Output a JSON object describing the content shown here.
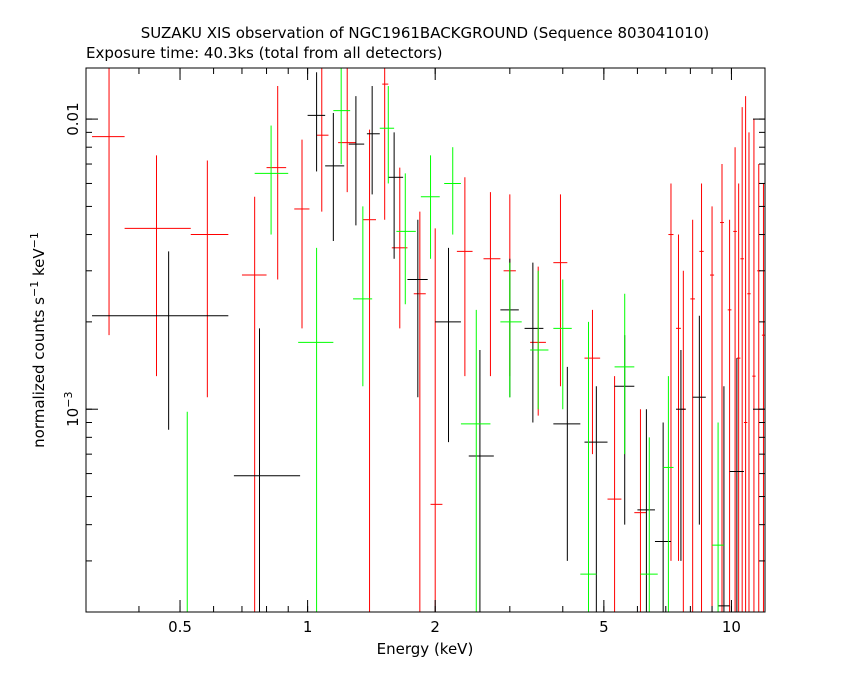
{
  "chart_data": {
    "type": "scatter",
    "title": "SUZAKU XIS observation of NGC1961BACKGROUND (Sequence 803041010)",
    "subtitle": "Exposure time: 40.3ks (total from all detectors)",
    "xlabel": "Energy (keV)",
    "ylabel": "normalized counts s^-1 keV^-1",
    "x_scale": "log",
    "y_scale": "log",
    "xlim": [
      0.3,
      12
    ],
    "ylim": [
      0.0002,
      0.015
    ],
    "x_ticks": [
      0.5,
      1,
      2,
      5,
      10
    ],
    "x_tick_labels": [
      "0.5",
      "1",
      "2",
      "5",
      "10"
    ],
    "y_ticks": [
      0.001,
      0.01
    ],
    "y_tick_labels": [
      "10^-3",
      "0.01"
    ],
    "grid": false,
    "series": [
      {
        "color": "#ff0000",
        "points": [
          {
            "x": 0.34,
            "xerr": [
              0.31,
              0.37
            ],
            "y": 0.0087,
            "yerr": [
              0.0018,
              0.016
            ]
          },
          {
            "x": 0.44,
            "xerr": [
              0.37,
              0.53
            ],
            "y": 0.0042,
            "yerr": [
              0.0013,
              0.0075
            ]
          },
          {
            "x": 0.58,
            "xerr": [
              0.53,
              0.65
            ],
            "y": 0.004,
            "yerr": [
              0.0011,
              0.0072
            ]
          },
          {
            "x": 0.75,
            "xerr": [
              0.7,
              0.8
            ],
            "y": 0.0029,
            "yerr": [
              0.0002,
              0.0054
            ]
          },
          {
            "x": 0.85,
            "xerr": [
              0.8,
              0.89
            ],
            "y": 0.0068,
            "yerr": [
              0.0028,
              0.013
            ]
          },
          {
            "x": 0.97,
            "xerr": [
              0.93,
              1.01
            ],
            "y": 0.0049,
            "yerr": [
              0.0019,
              0.0085
            ]
          },
          {
            "x": 1.08,
            "xerr": [
              1.05,
              1.12
            ],
            "y": 0.0088,
            "yerr": [
              0.0048,
              0.015
            ]
          },
          {
            "x": 1.24,
            "xerr": [
              1.18,
              1.3
            ],
            "y": 0.0083,
            "yerr": [
              0.0056,
              0.015
            ]
          },
          {
            "x": 1.4,
            "xerr": [
              1.35,
              1.45
            ],
            "y": 0.0045,
            "yerr": [
              0.0002,
              0.0092
            ]
          },
          {
            "x": 1.52,
            "xerr": [
              1.5,
              1.55
            ],
            "y": 0.0132,
            "yerr": [
              0.0045,
              0.015
            ]
          },
          {
            "x": 1.65,
            "xerr": [
              1.58,
              1.72
            ],
            "y": 0.0036,
            "yerr": [
              0.0019,
              0.0068
            ]
          },
          {
            "x": 1.84,
            "xerr": [
              1.78,
              1.9
            ],
            "y": 0.0025,
            "yerr": [
              0.0002,
              0.0048
            ]
          },
          {
            "x": 2.0,
            "xerr": [
              1.95,
              2.08
            ],
            "y": 0.00047,
            "yerr": [
              0.0002,
              0.0042
            ]
          },
          {
            "x": 2.35,
            "xerr": [
              2.25,
              2.45
            ],
            "y": 0.0035,
            "yerr": [
              0.0013,
              0.0063
            ]
          },
          {
            "x": 2.7,
            "xerr": [
              2.6,
              2.85
            ],
            "y": 0.0033,
            "yerr": [
              0.0013,
              0.0056
            ]
          },
          {
            "x": 3.0,
            "xerr": [
              2.9,
              3.1
            ],
            "y": 0.003,
            "yerr": [
              0.0013,
              0.0055
            ]
          },
          {
            "x": 3.5,
            "xerr": [
              3.35,
              3.65
            ],
            "y": 0.0017,
            "yerr": [
              0.00095,
              0.0031
            ]
          },
          {
            "x": 3.95,
            "xerr": [
              3.8,
              4.1
            ],
            "y": 0.0032,
            "yerr": [
              0.0012,
              0.0055
            ]
          },
          {
            "x": 4.7,
            "xerr": [
              4.5,
              4.9
            ],
            "y": 0.0015,
            "yerr": [
              0.0007,
              0.0022
            ]
          },
          {
            "x": 5.3,
            "xerr": [
              5.1,
              5.5
            ],
            "y": 0.00049,
            "yerr": [
              0.0002,
              0.0013
            ]
          },
          {
            "x": 6.1,
            "xerr": [
              5.9,
              6.3
            ],
            "y": 0.00044,
            "yerr": [
              0.0002,
              0.001
            ]
          },
          {
            "x": 7.2,
            "xerr": [
              7.1,
              7.3
            ],
            "y": 0.004,
            "yerr": [
              0.0003,
              0.006
            ]
          },
          {
            "x": 7.5,
            "xerr": [
              7.4,
              7.6
            ],
            "y": 0.0019,
            "yerr": [
              0.0003,
              0.004
            ]
          },
          {
            "x": 7.7,
            "xerr": [
              7.6,
              7.8
            ],
            "y": 0.001,
            "yerr": [
              0.0002,
              0.003
            ]
          },
          {
            "x": 8.1,
            "xerr": [
              8.0,
              8.2
            ],
            "y": 0.0024,
            "yerr": [
              0.0002,
              0.0045
            ]
          },
          {
            "x": 8.5,
            "xerr": [
              8.4,
              8.6
            ],
            "y": 0.0035,
            "yerr": [
              0.0002,
              0.006
            ]
          },
          {
            "x": 9.0,
            "xerr": [
              8.9,
              9.1
            ],
            "y": 0.0029,
            "yerr": [
              0.0002,
              0.005
            ]
          },
          {
            "x": 9.5,
            "xerr": [
              9.4,
              9.6
            ],
            "y": 0.0044,
            "yerr": [
              0.0002,
              0.007
            ]
          },
          {
            "x": 9.9,
            "xerr": [
              9.8,
              10.0
            ],
            "y": 0.0022,
            "yerr": [
              0.0002,
              0.0045
            ]
          },
          {
            "x": 10.2,
            "xerr": [
              10.1,
              10.3
            ],
            "y": 0.0041,
            "yerr": [
              0.0002,
              0.008
            ]
          },
          {
            "x": 10.4,
            "xerr": [
              10.3,
              10.5
            ],
            "y": 0.0015,
            "yerr": [
              0.0002,
              0.006
            ]
          },
          {
            "x": 10.6,
            "xerr": [
              10.5,
              10.7
            ],
            "y": 0.0033,
            "yerr": [
              0.0002,
              0.011
            ]
          },
          {
            "x": 10.8,
            "xerr": [
              10.7,
              10.9
            ],
            "y": 0.0009,
            "yerr": [
              0.0002,
              0.012
            ]
          },
          {
            "x": 11.0,
            "xerr": [
              10.9,
              11.1
            ],
            "y": 0.0025,
            "yerr": [
              0.0002,
              0.009
            ]
          },
          {
            "x": 11.3,
            "xerr": [
              11.2,
              11.4
            ],
            "y": 0.0013,
            "yerr": [
              0.0002,
              0.01
            ]
          },
          {
            "x": 11.6,
            "xerr": [
              11.5,
              11.7
            ],
            "y": 0.003,
            "yerr": [
              0.0002,
              0.007
            ]
          },
          {
            "x": 11.9,
            "xerr": [
              11.8,
              12.0
            ],
            "y": 0.0018,
            "yerr": [
              0.0002,
              0.006
            ]
          }
        ]
      },
      {
        "color": "#000000",
        "points": [
          {
            "x": 0.47,
            "xerr": [
              0.31,
              0.65
            ],
            "y": 0.0021,
            "yerr": [
              0.00085,
              0.0035
            ]
          },
          {
            "x": 0.77,
            "xerr": [
              0.67,
              0.96
            ],
            "y": 0.00059,
            "yerr": [
              0.0002,
              0.0019
            ]
          },
          {
            "x": 1.05,
            "xerr": [
              1.0,
              1.1
            ],
            "y": 0.0103,
            "yerr": [
              0.0066,
              0.0145
            ]
          },
          {
            "x": 1.15,
            "xerr": [
              1.1,
              1.22
            ],
            "y": 0.0069,
            "yerr": [
              0.0038,
              0.0105
            ]
          },
          {
            "x": 1.3,
            "xerr": [
              1.25,
              1.36
            ],
            "y": 0.0082,
            "yerr": [
              0.0043,
              0.012
            ]
          },
          {
            "x": 1.42,
            "xerr": [
              1.38,
              1.48
            ],
            "y": 0.0089,
            "yerr": [
              0.0055,
              0.013
            ]
          },
          {
            "x": 1.6,
            "xerr": [
              1.55,
              1.68
            ],
            "y": 0.0063,
            "yerr": [
              0.0033,
              0.009
            ]
          },
          {
            "x": 1.82,
            "xerr": [
              1.72,
              1.92
            ],
            "y": 0.0028,
            "yerr": [
              0.0011,
              0.0045
            ]
          },
          {
            "x": 2.15,
            "xerr": [
              2.0,
              2.3
            ],
            "y": 0.002,
            "yerr": [
              0.00077,
              0.0036
            ]
          },
          {
            "x": 2.55,
            "xerr": [
              2.4,
              2.75
            ],
            "y": 0.00069,
            "yerr": [
              0.0002,
              0.0016
            ]
          },
          {
            "x": 3.0,
            "xerr": [
              2.85,
              3.15
            ],
            "y": 0.0022,
            "yerr": [
              0.0011,
              0.0033
            ]
          },
          {
            "x": 3.4,
            "xerr": [
              3.25,
              3.6
            ],
            "y": 0.0019,
            "yerr": [
              0.0009,
              0.0032
            ]
          },
          {
            "x": 4.1,
            "xerr": [
              3.8,
              4.4
            ],
            "y": 0.00089,
            "yerr": [
              0.0003,
              0.0014
            ]
          },
          {
            "x": 4.8,
            "xerr": [
              4.5,
              5.1
            ],
            "y": 0.00077,
            "yerr": [
              0.0002,
              0.0012
            ]
          },
          {
            "x": 5.6,
            "xerr": [
              5.3,
              5.9
            ],
            "y": 0.0012,
            "yerr": [
              0.0004,
              0.0018
            ]
          },
          {
            "x": 6.3,
            "xerr": [
              6.0,
              6.6
            ],
            "y": 0.00045,
            "yerr": [
              0.0002,
              0.001
            ]
          },
          {
            "x": 6.9,
            "xerr": [
              6.6,
              7.2
            ],
            "y": 0.00035,
            "yerr": [
              0.0002,
              0.0009
            ]
          },
          {
            "x": 7.6,
            "xerr": [
              7.4,
              7.8
            ],
            "y": 0.001,
            "yerr": [
              0.0003,
              0.0016
            ]
          },
          {
            "x": 8.4,
            "xerr": [
              8.1,
              8.7
            ],
            "y": 0.0011,
            "yerr": [
              0.0004,
              0.0021
            ]
          },
          {
            "x": 9.6,
            "xerr": [
              9.3,
              9.9
            ],
            "y": 0.00021,
            "yerr": [
              0.0002,
              0.0012
            ]
          },
          {
            "x": 10.3,
            "xerr": [
              9.9,
              10.7
            ],
            "y": 0.00061,
            "yerr": [
              0.0002,
              0.0015
            ]
          }
        ]
      },
      {
        "color": "#00ff00",
        "points": [
          {
            "x": 0.52,
            "xerr": [
              0.52,
              0.52
            ],
            "y": 0.00098,
            "yerr": [
              0.0002,
              0.00098
            ]
          },
          {
            "x": 0.82,
            "xerr": [
              0.75,
              0.9
            ],
            "y": 0.0065,
            "yerr": [
              0.004,
              0.0095
            ]
          },
          {
            "x": 1.05,
            "xerr": [
              0.95,
              1.15
            ],
            "y": 0.0017,
            "yerr": [
              0.0002,
              0.0036
            ]
          },
          {
            "x": 1.2,
            "xerr": [
              1.15,
              1.26
            ],
            "y": 0.0107,
            "yerr": [
              0.007,
              0.015
            ]
          },
          {
            "x": 1.35,
            "xerr": [
              1.28,
              1.42
            ],
            "y": 0.0024,
            "yerr": [
              0.0012,
              0.005
            ]
          },
          {
            "x": 1.55,
            "xerr": [
              1.48,
              1.6
            ],
            "y": 0.0093,
            "yerr": [
              0.006,
              0.013
            ]
          },
          {
            "x": 1.7,
            "xerr": [
              1.62,
              1.8
            ],
            "y": 0.0041,
            "yerr": [
              0.0023,
              0.0065
            ]
          },
          {
            "x": 1.95,
            "xerr": [
              1.85,
              2.05
            ],
            "y": 0.0054,
            "yerr": [
              0.0033,
              0.0075
            ]
          },
          {
            "x": 2.2,
            "xerr": [
              2.1,
              2.3
            ],
            "y": 0.006,
            "yerr": [
              0.004,
              0.008
            ]
          },
          {
            "x": 2.5,
            "xerr": [
              2.3,
              2.7
            ],
            "y": 0.00089,
            "yerr": [
              0.0002,
              0.0022
            ]
          },
          {
            "x": 3.0,
            "xerr": [
              2.85,
              3.2
            ],
            "y": 0.002,
            "yerr": [
              0.0011,
              0.0032
            ]
          },
          {
            "x": 3.5,
            "xerr": [
              3.35,
              3.7
            ],
            "y": 0.0016,
            "yerr": [
              0.001,
              0.003
            ]
          },
          {
            "x": 4.0,
            "xerr": [
              3.8,
              4.2
            ],
            "y": 0.0019,
            "yerr": [
              0.001,
              0.0028
            ]
          },
          {
            "x": 4.6,
            "xerr": [
              4.4,
              4.8
            ],
            "y": 0.00027,
            "yerr": [
              0.0002,
              0.002
            ]
          },
          {
            "x": 5.6,
            "xerr": [
              5.3,
              5.9
            ],
            "y": 0.0014,
            "yerr": [
              0.0007,
              0.0025
            ]
          },
          {
            "x": 6.4,
            "xerr": [
              6.1,
              6.7
            ],
            "y": 0.00027,
            "yerr": [
              0.0002,
              0.0008
            ]
          },
          {
            "x": 7.1,
            "xerr": [
              6.9,
              7.3
            ],
            "y": 0.00063,
            "yerr": [
              0.0002,
              0.0013
            ]
          },
          {
            "x": 9.3,
            "xerr": [
              9.0,
              9.6
            ],
            "y": 0.00034,
            "yerr": [
              0.0002,
              0.0009
            ]
          }
        ]
      }
    ]
  }
}
